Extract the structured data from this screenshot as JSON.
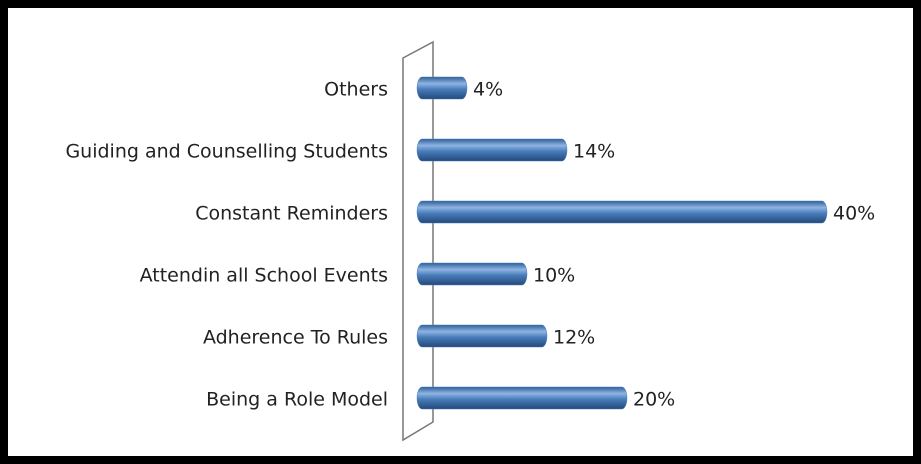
{
  "chart_data": {
    "type": "bar",
    "orientation": "horizontal",
    "categories": [
      "Others",
      "Guiding and Counselling Students",
      "Constant Reminders",
      "Attendin all School Events",
      "Adherence To Rules",
      "Being a Role Model"
    ],
    "values": [
      4,
      14,
      40,
      10,
      12,
      20
    ],
    "value_labels": [
      "4%",
      "14%",
      "40%",
      "10%",
      "12%",
      "20%"
    ],
    "color": "#4a7ebb"
  }
}
